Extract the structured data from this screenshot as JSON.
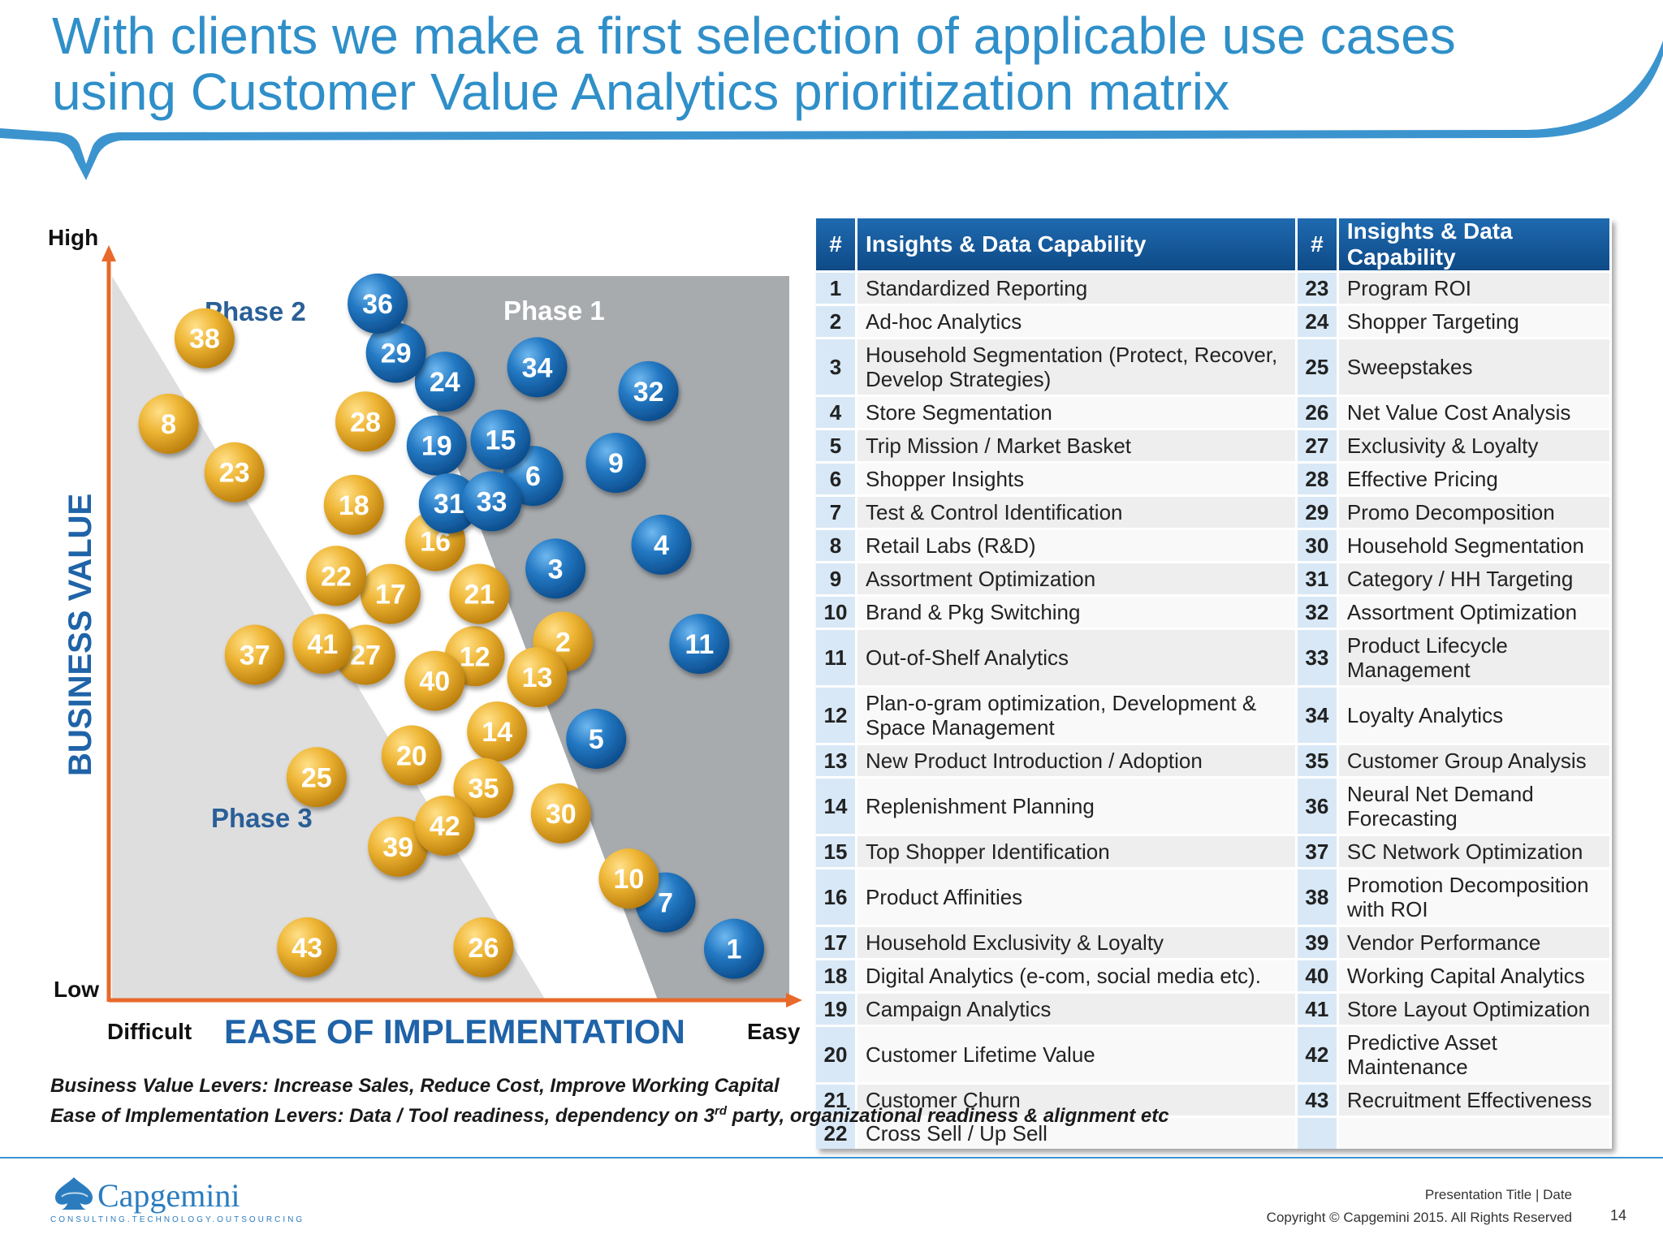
{
  "title": {
    "line1": "With clients we make a first selection of applicable use cases",
    "line2": "using Customer Value Analytics prioritization matrix"
  },
  "colors": {
    "title_blue": "#2f8fc9",
    "axis_orange": "#e8692a",
    "axis_label_blue": "#1f63a8",
    "phase_text_blue": "#2a5f97",
    "bubble_blue": "#1d6fb4",
    "bubble_gold": "#e1a51c",
    "phase1_fill": "#a7abae",
    "phase23_fill": "#dededf"
  },
  "chart_data": {
    "type": "scatter",
    "title": "Customer Value Analytics prioritization matrix",
    "xlabel": "EASE OF IMPLEMENTATION",
    "ylabel": "BUSINESS VALUE",
    "x_ticks": {
      "low": "Difficult",
      "high": "Easy"
    },
    "y_ticks": {
      "low": "Low",
      "high": "High"
    },
    "xlim": [
      0,
      100
    ],
    "ylim": [
      0,
      100
    ],
    "phases": [
      {
        "name": "Phase 1",
        "color": "#a7abae"
      },
      {
        "name": "Phase 2",
        "color": "#dededf"
      },
      {
        "name": "Phase 3",
        "color": "#dededf"
      }
    ],
    "categories": [
      {
        "name": "Blue group",
        "color": "#1d6fb4"
      },
      {
        "name": "Gold group",
        "color": "#e1a51c"
      }
    ],
    "points": [
      {
        "id": "1",
        "x": 92.1,
        "y": 7.1,
        "group": "blue"
      },
      {
        "id": "2",
        "x": 66.9,
        "y": 49.5,
        "group": "gold"
      },
      {
        "id": "3",
        "x": 65.8,
        "y": 59.6,
        "group": "blue"
      },
      {
        "id": "4",
        "x": 81.4,
        "y": 62.9,
        "group": "blue"
      },
      {
        "id": "5",
        "x": 71.8,
        "y": 36.1,
        "group": "blue"
      },
      {
        "id": "6",
        "x": 62.5,
        "y": 72.4,
        "group": "blue"
      },
      {
        "id": "7",
        "x": 82.0,
        "y": 13.5,
        "group": "blue"
      },
      {
        "id": "8",
        "x": 8.8,
        "y": 79.6,
        "group": "gold"
      },
      {
        "id": "9",
        "x": 74.7,
        "y": 74.2,
        "group": "blue"
      },
      {
        "id": "10",
        "x": 76.6,
        "y": 16.8,
        "group": "gold"
      },
      {
        "id": "11",
        "x": 87.0,
        "y": 49.2,
        "group": "blue"
      },
      {
        "id": "12",
        "x": 53.9,
        "y": 47.5,
        "group": "gold"
      },
      {
        "id": "13",
        "x": 63.1,
        "y": 44.6,
        "group": "gold"
      },
      {
        "id": "14",
        "x": 57.2,
        "y": 37.1,
        "group": "gold"
      },
      {
        "id": "15",
        "x": 57.7,
        "y": 77.4,
        "group": "blue"
      },
      {
        "id": "16",
        "x": 48.1,
        "y": 63.4,
        "group": "gold"
      },
      {
        "id": "17",
        "x": 41.5,
        "y": 56.1,
        "group": "gold"
      },
      {
        "id": "18",
        "x": 36.1,
        "y": 68.4,
        "group": "gold"
      },
      {
        "id": "19",
        "x": 48.3,
        "y": 76.6,
        "group": "blue"
      },
      {
        "id": "20",
        "x": 44.6,
        "y": 33.8,
        "group": "gold"
      },
      {
        "id": "21",
        "x": 54.6,
        "y": 56.1,
        "group": "gold"
      },
      {
        "id": "22",
        "x": 33.5,
        "y": 58.6,
        "group": "gold"
      },
      {
        "id": "23",
        "x": 18.5,
        "y": 72.9,
        "group": "gold"
      },
      {
        "id": "24",
        "x": 49.5,
        "y": 85.4,
        "group": "blue"
      },
      {
        "id": "25",
        "x": 30.6,
        "y": 30.8,
        "group": "gold"
      },
      {
        "id": "26",
        "x": 55.2,
        "y": 7.3,
        "group": "gold"
      },
      {
        "id": "27",
        "x": 37.8,
        "y": 47.7,
        "group": "gold"
      },
      {
        "id": "28",
        "x": 37.8,
        "y": 79.9,
        "group": "gold"
      },
      {
        "id": "29",
        "x": 42.3,
        "y": 89.4,
        "group": "blue"
      },
      {
        "id": "30",
        "x": 66.6,
        "y": 25.8,
        "group": "gold"
      },
      {
        "id": "31",
        "x": 50.1,
        "y": 68.6,
        "group": "blue"
      },
      {
        "id": "32",
        "x": 79.5,
        "y": 84.1,
        "group": "blue"
      },
      {
        "id": "33",
        "x": 56.4,
        "y": 68.9,
        "group": "blue"
      },
      {
        "id": "34",
        "x": 63.1,
        "y": 87.4,
        "group": "blue"
      },
      {
        "id": "35",
        "x": 55.2,
        "y": 29.3,
        "group": "gold"
      },
      {
        "id": "36",
        "x": 39.6,
        "y": 96.2,
        "group": "blue"
      },
      {
        "id": "37",
        "x": 21.5,
        "y": 47.7,
        "group": "gold"
      },
      {
        "id": "38",
        "x": 14.1,
        "y": 91.4,
        "group": "gold"
      },
      {
        "id": "39",
        "x": 42.6,
        "y": 21.2,
        "group": "gold"
      },
      {
        "id": "40",
        "x": 48.0,
        "y": 44.1,
        "group": "gold"
      },
      {
        "id": "41",
        "x": 31.5,
        "y": 49.2,
        "group": "gold"
      },
      {
        "id": "42",
        "x": 49.5,
        "y": 24.1,
        "group": "gold"
      },
      {
        "id": "43",
        "x": 29.2,
        "y": 7.3,
        "group": "gold"
      }
    ]
  },
  "table": {
    "header_num": "#",
    "header_label": "Insights & Data Capability",
    "rows": [
      {
        "l_num": "1",
        "l_name": "Standardized Reporting",
        "r_num": "23",
        "r_name": "Program ROI"
      },
      {
        "l_num": "2",
        "l_name": "Ad-hoc Analytics",
        "r_num": "24",
        "r_name": "Shopper Targeting"
      },
      {
        "l_num": "3",
        "l_name": "Household Segmentation (Protect, Recover, Develop Strategies)",
        "r_num": "25",
        "r_name": "Sweepstakes"
      },
      {
        "l_num": "4",
        "l_name": "Store Segmentation",
        "r_num": "26",
        "r_name": "Net Value Cost Analysis"
      },
      {
        "l_num": "5",
        "l_name": "Trip Mission / Market Basket",
        "r_num": "27",
        "r_name": "Exclusivity & Loyalty"
      },
      {
        "l_num": "6",
        "l_name": "Shopper Insights",
        "r_num": "28",
        "r_name": "Effective Pricing"
      },
      {
        "l_num": "7",
        "l_name": "Test & Control Identification",
        "r_num": "29",
        "r_name": "Promo Decomposition"
      },
      {
        "l_num": "8",
        "l_name": "Retail Labs (R&D)",
        "r_num": "30",
        "r_name": "Household Segmentation"
      },
      {
        "l_num": "9",
        "l_name": "Assortment Optimization",
        "r_num": "31",
        "r_name": "Category / HH Targeting"
      },
      {
        "l_num": "10",
        "l_name": "Brand & Pkg Switching",
        "r_num": "32",
        "r_name": "Assortment Optimization"
      },
      {
        "l_num": "11",
        "l_name": "Out-of-Shelf Analytics",
        "r_num": "33",
        "r_name": "Product Lifecycle Management"
      },
      {
        "l_num": "12",
        "l_name": "Plan-o-gram optimization, Development & Space Management",
        "r_num": "34",
        "r_name": "Loyalty Analytics"
      },
      {
        "l_num": "13",
        "l_name": "New Product Introduction / Adoption",
        "r_num": "35",
        "r_name": "Customer Group Analysis"
      },
      {
        "l_num": "14",
        "l_name": "Replenishment  Planning",
        "r_num": "36",
        "r_name": "Neural Net Demand Forecasting"
      },
      {
        "l_num": "15",
        "l_name": "Top Shopper Identification",
        "r_num": "37",
        "r_name": "SC Network Optimization"
      },
      {
        "l_num": "16",
        "l_name": "Product Affinities",
        "r_num": "38",
        "r_name": "Promotion Decomposition with ROI"
      },
      {
        "l_num": "17",
        "l_name": "Household Exclusivity & Loyalty",
        "r_num": "39",
        "r_name": "Vendor Performance"
      },
      {
        "l_num": "18",
        "l_name": "Digital Analytics (e-com, social media etc).",
        "r_num": "40",
        "r_name": "Working Capital Analytics"
      },
      {
        "l_num": "19",
        "l_name": "Campaign Analytics",
        "r_num": "41",
        "r_name": "Store Layout Optimization"
      },
      {
        "l_num": "20",
        "l_name": "Customer Lifetime Value",
        "r_num": "42",
        "r_name": "Predictive Asset Maintenance"
      },
      {
        "l_num": "21",
        "l_name": "Customer Churn",
        "r_num": "43",
        "r_name": "Recruitment Effectiveness"
      },
      {
        "l_num": "22",
        "l_name": "Cross Sell / Up Sell",
        "r_num": "",
        "r_name": ""
      }
    ]
  },
  "levers": {
    "business_value": "Business Value Levers: Increase Sales, Reduce Cost, Improve Working Capital",
    "ease_prefix": "Ease of Implementation Levers:  Data / Tool readiness, dependency on 3",
    "ease_sup": "rd",
    "ease_suffix": " party,  organizational readiness & alignment etc"
  },
  "footer": {
    "logo_text": "Capgemini",
    "logo_tagline": "CONSULTING.TECHNOLOGY.OUTSOURCING",
    "presentation": "Presentation Title | Date",
    "copyright": "Copyright © Capgemini 2015. All Rights Reserved",
    "page_number": "14"
  }
}
